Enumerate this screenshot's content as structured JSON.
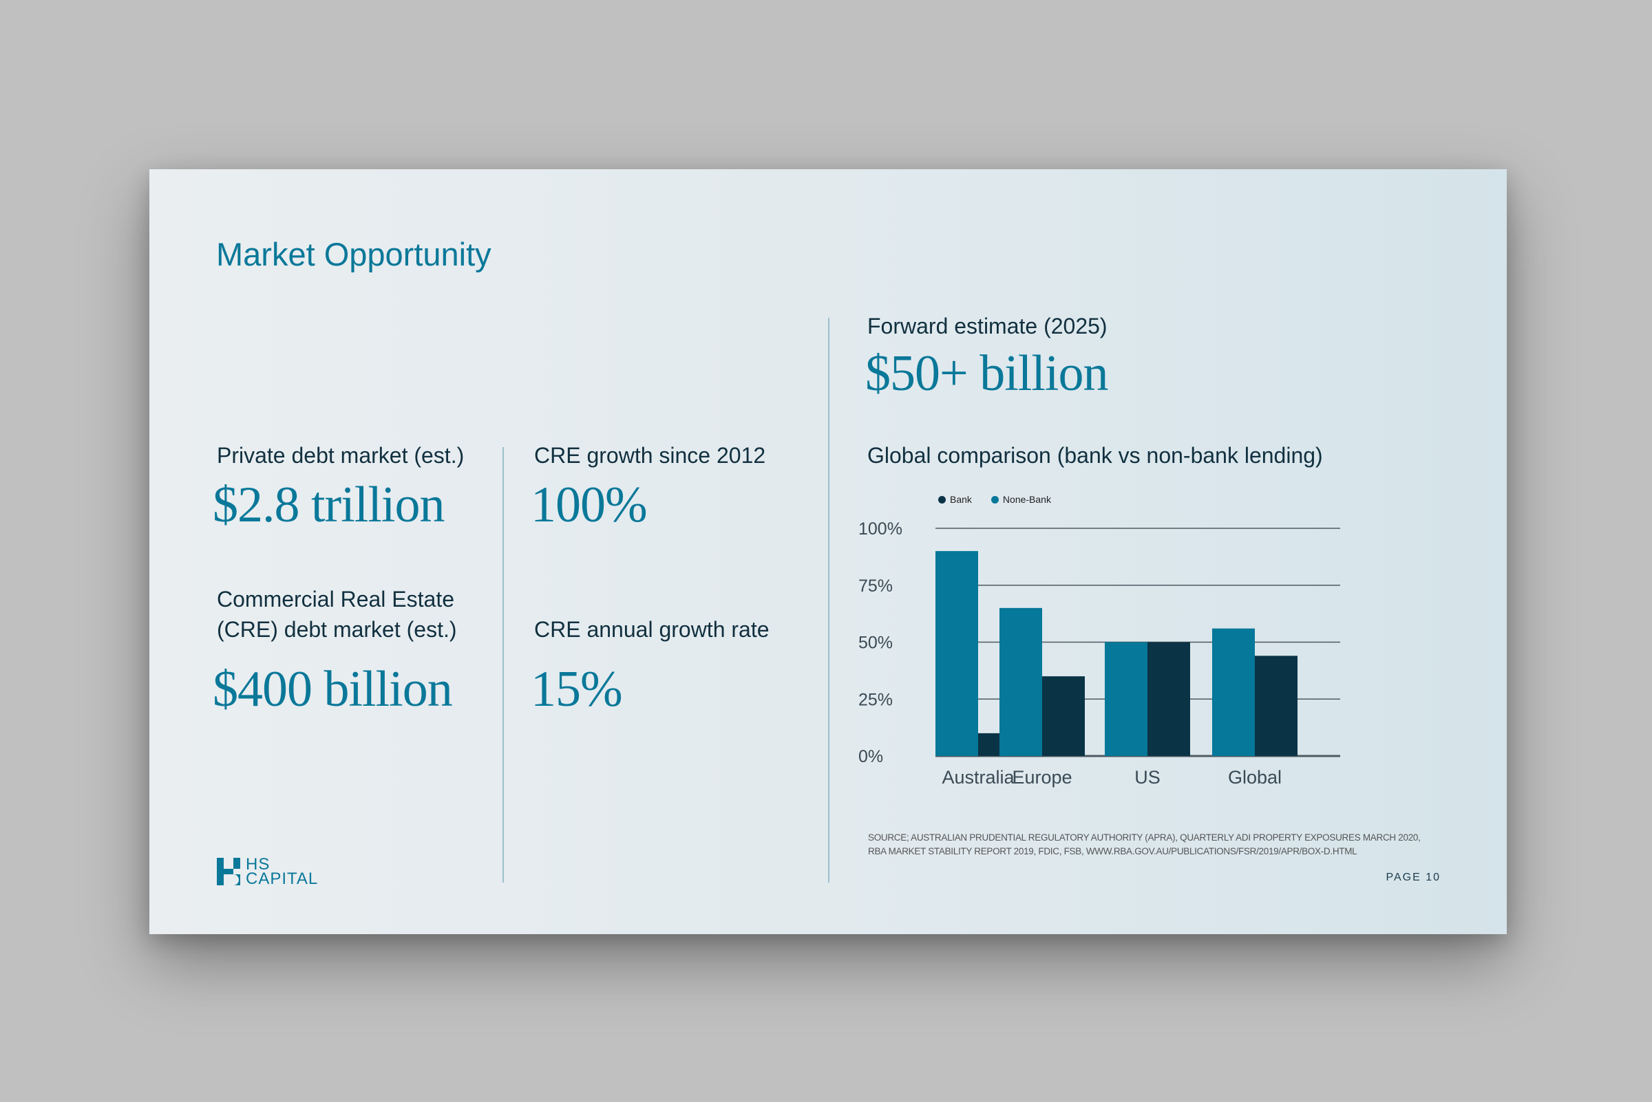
{
  "title": "Market Opportunity",
  "left": {
    "private_debt_label": "Private debt market (est.)",
    "private_debt_value": "$2.8 trillion",
    "cre_debt_label_1": "Commercial Real Estate",
    "cre_debt_label_2": "(CRE) debt market (est.)",
    "cre_debt_value": "$400 billion"
  },
  "middle": {
    "growth_label": "CRE growth since 2012",
    "growth_value": "100%",
    "annual_label": "CRE annual growth rate",
    "annual_value": "15%"
  },
  "right": {
    "forward_label": "Forward estimate (2025)",
    "forward_value": "$50+ billion",
    "comparison_label": "Global comparison (bank vs non-bank lending)"
  },
  "chart_data": {
    "type": "bar",
    "title": "Global comparison (bank vs non-bank lending)",
    "categories": [
      "Australia",
      "Europe",
      "US",
      "Global"
    ],
    "series": [
      {
        "name": "None-Bank",
        "color": "#067899",
        "values": [
          90,
          65,
          50,
          56
        ]
      },
      {
        "name": "Bank",
        "color": "#0b3346",
        "values": [
          10,
          35,
          50,
          44
        ]
      }
    ],
    "legend_order": [
      "Bank",
      "None-Bank"
    ],
    "yticks": [
      "0%",
      "25%",
      "50%",
      "75%",
      "100%"
    ],
    "ylim": [
      0,
      100
    ],
    "grid": true,
    "legend_position": "top-left"
  },
  "source_line_1": "SOURCE; AUSTRALIAN PRUDENTIAL REGULATORY AUTHORITY (APRA), QUARTERLY ADI PROPERTY EXPOSURES MARCH 2020,",
  "source_line_2": "RBA MARKET STABILITY REPORT 2019, FDIC, FSB, WWW.RBA.GOV.AU/PUBLICATIONS/FSR/2019/APR/BOX-D.HTML",
  "page": "PAGE 10",
  "logo": {
    "line1": "HS",
    "line2": "CAPITAL",
    "color": "#0a7899"
  }
}
